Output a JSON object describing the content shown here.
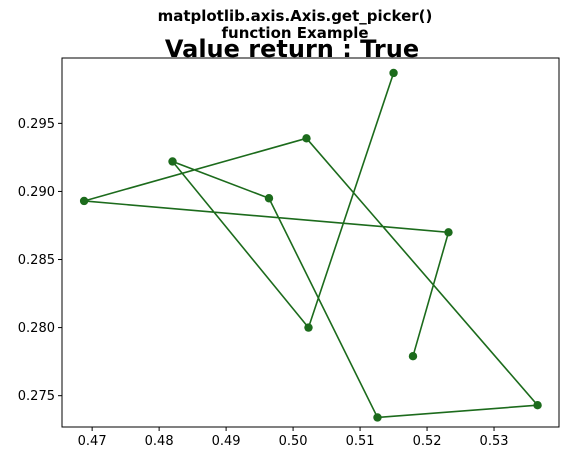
{
  "chart_data": {
    "type": "line",
    "title": "matplotlib.axis.Axis.get_picker()\nfunction Example",
    "suptitle": "Value return : True",
    "xlabel": "",
    "ylabel": "",
    "xlim": [
      0.4655,
      0.5397
    ],
    "ylim": [
      0.2727,
      0.2998
    ],
    "xticks": [
      "0.47",
      "0.48",
      "0.49",
      "0.50",
      "0.51",
      "0.52",
      "0.53"
    ],
    "xtick_values": [
      0.47,
      0.48,
      0.49,
      0.5,
      0.51,
      0.52,
      0.53
    ],
    "yticks": [
      "0.275",
      "0.280",
      "0.285",
      "0.290",
      "0.295"
    ],
    "ytick_values": [
      0.275,
      0.28,
      0.285,
      0.29,
      0.295
    ],
    "grid": false,
    "series": [
      {
        "color": "#1c6b1c",
        "marker": "circle",
        "x": [
          0.515,
          0.5023,
          0.482,
          0.4964,
          0.5126,
          0.5365,
          0.502,
          0.4688,
          0.5232,
          0.5179
        ],
        "y": [
          0.2987,
          0.28,
          0.2922,
          0.2895,
          0.2734,
          0.2743,
          0.2939,
          0.2893,
          0.287,
          0.2779
        ]
      }
    ]
  }
}
